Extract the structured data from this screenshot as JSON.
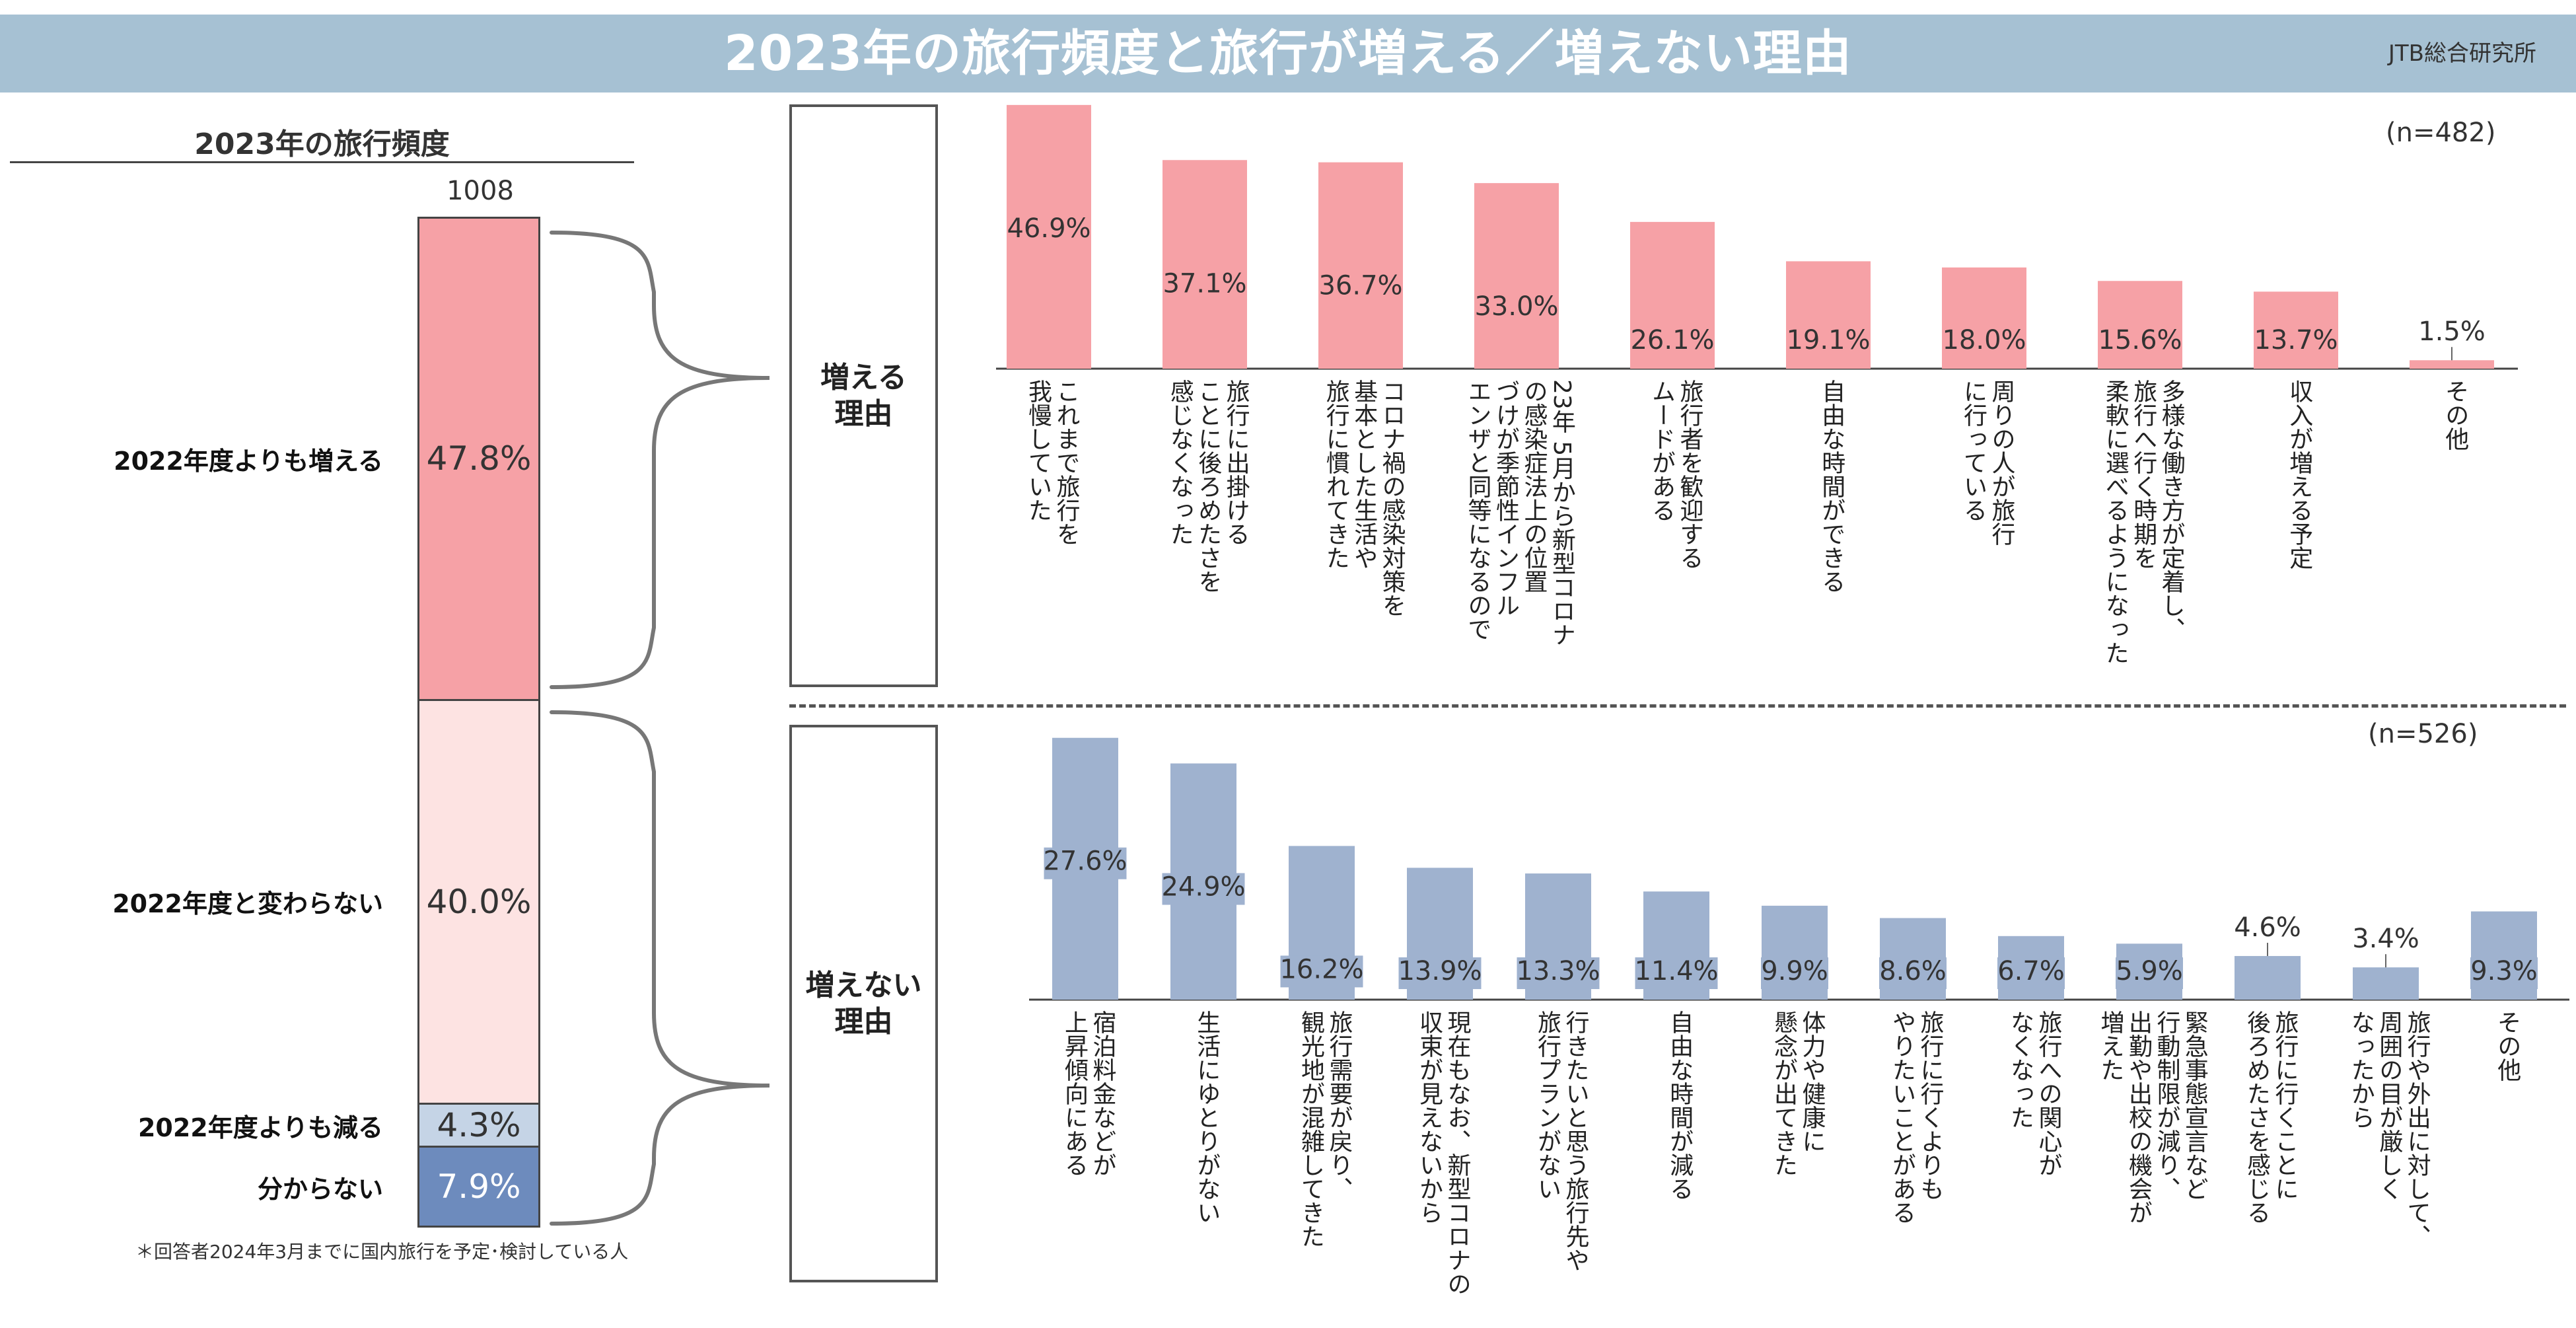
{
  "header": {
    "title": "2023年の旅行頻度と旅行が増える／増えない理由",
    "org": "JTB総合研究所"
  },
  "left": {
    "title": "2023年の旅行頻度",
    "total": "1008",
    "footnote": "＊回答者2024年3月までに国内旅行を予定･検討している人"
  },
  "boxes": {
    "increase": "増える\n理由",
    "no_increase": "増えない\n理由"
  },
  "colors": {
    "increase_bar": "#f6a1a6",
    "no_increase_bar": "#9fb2cf",
    "stack": [
      "#f6a1a6",
      "#fde3e2",
      "#c5d4e6",
      "#6d8bbd"
    ]
  },
  "chart_data": [
    {
      "type": "bar",
      "orientation": "vertical-stacked",
      "title": "2023年の旅行頻度",
      "total_label": "1008",
      "categories": [
        "2022年度よりも増える",
        "2022年度と変わらない",
        "2022年度よりも減る",
        "分からない"
      ],
      "values": [
        47.8,
        40.0,
        4.3,
        7.9
      ],
      "value_labels": [
        "47.8%",
        "40.0%",
        "4.3%",
        "7.9%"
      ],
      "unit": "%"
    },
    {
      "type": "bar",
      "n_label": "(n=482)",
      "categories": [
        "これまで旅行を\n我慢していた",
        "旅行に出掛ける\nことに後ろめたさを\n感じなくなった",
        "コロナ禍の感染対策を\n基本とした生活や\n旅行に慣れてきた",
        "23年 5月から新型コロナ\nの感染症法上の位置\nづけが季節性インフル\nエンザと同等になるので",
        "旅行者を歓迎する\nムードがある",
        "自由な時間ができる",
        "周りの人が旅行\nに行っている",
        "多様な働き方が定着し、\n旅行へ行く時期を\n柔軟に選べるようになった",
        "収入が増える予定",
        "その他"
      ],
      "values": [
        46.9,
        37.1,
        36.7,
        33.0,
        26.1,
        19.1,
        18.0,
        15.6,
        13.7,
        1.5
      ],
      "value_labels": [
        "46.9%",
        "37.1%",
        "36.7%",
        "33.0%",
        "26.1%",
        "19.1%",
        "18.0%",
        "15.6%",
        "13.7%",
        "1.5%"
      ],
      "ylim": [
        0,
        47
      ]
    },
    {
      "type": "bar",
      "n_label": "(n=526)",
      "categories": [
        "宿泊料金などが\n上昇傾向にある",
        "生活にゆとりがない",
        "旅行需要が戻り、\n観光地が混雑してきた",
        "現在もなお、新型コロナの\n収束が見えないから",
        "行きたいと思う旅行先や\n旅行プランがない",
        "自由な時間が減る",
        "体力や健康に\n懸念が出てきた",
        "旅行に行くよりも\nやりたいことがある",
        "旅行への関心が\nなくなった",
        "緊急事態宣言など\n行動制限が減り、\n出勤や出校の機会が\n増えた",
        "旅行に行くことに\n後ろめたさを感じる",
        "旅行や外出に対して、\n周囲の目が厳しく\nなったから",
        "その他"
      ],
      "values": [
        27.6,
        24.9,
        16.2,
        13.9,
        13.3,
        11.4,
        9.9,
        8.6,
        6.7,
        5.9,
        4.6,
        3.4,
        9.3
      ],
      "value_labels": [
        "27.6%",
        "24.9%",
        "16.2%",
        "13.9%",
        "13.3%",
        "11.4%",
        "9.9%",
        "8.6%",
        "6.7%",
        "5.9%",
        "4.6%",
        "3.4%",
        "9.3%"
      ],
      "ylim": [
        0,
        28
      ]
    }
  ]
}
